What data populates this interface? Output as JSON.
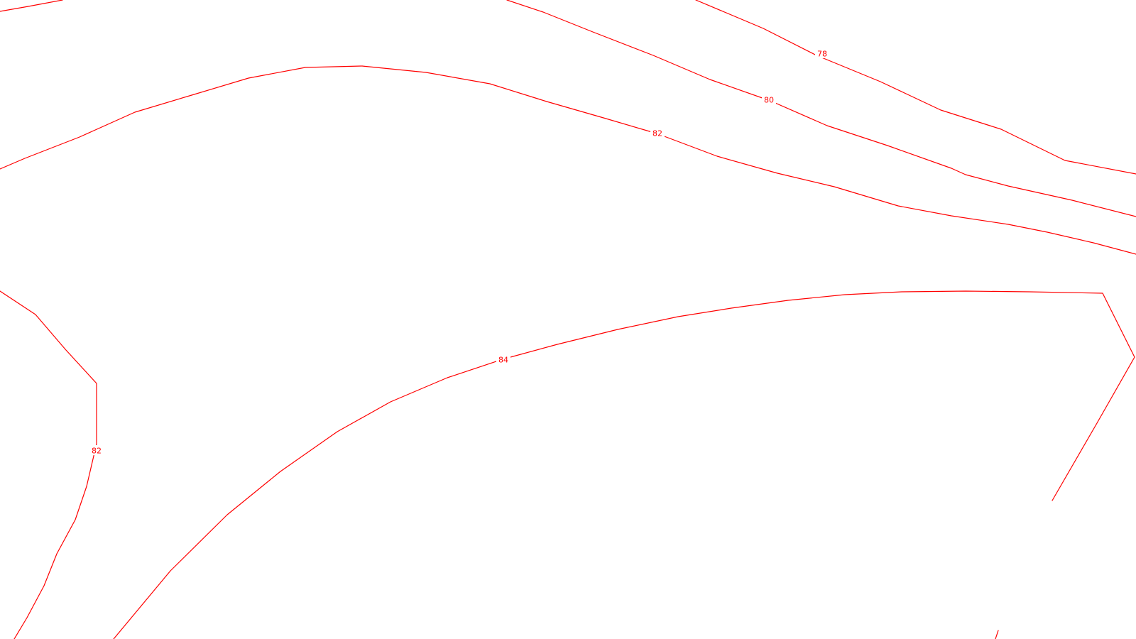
{
  "map": {
    "style": {
      "line_color": "#ff0000",
      "label_color": "#ff0000",
      "background": "#ffffff"
    },
    "contour_labels": {
      "label_78": "78",
      "label_80": "80",
      "label_82_upper": "82",
      "label_84": "84",
      "label_82_left": "82"
    }
  }
}
